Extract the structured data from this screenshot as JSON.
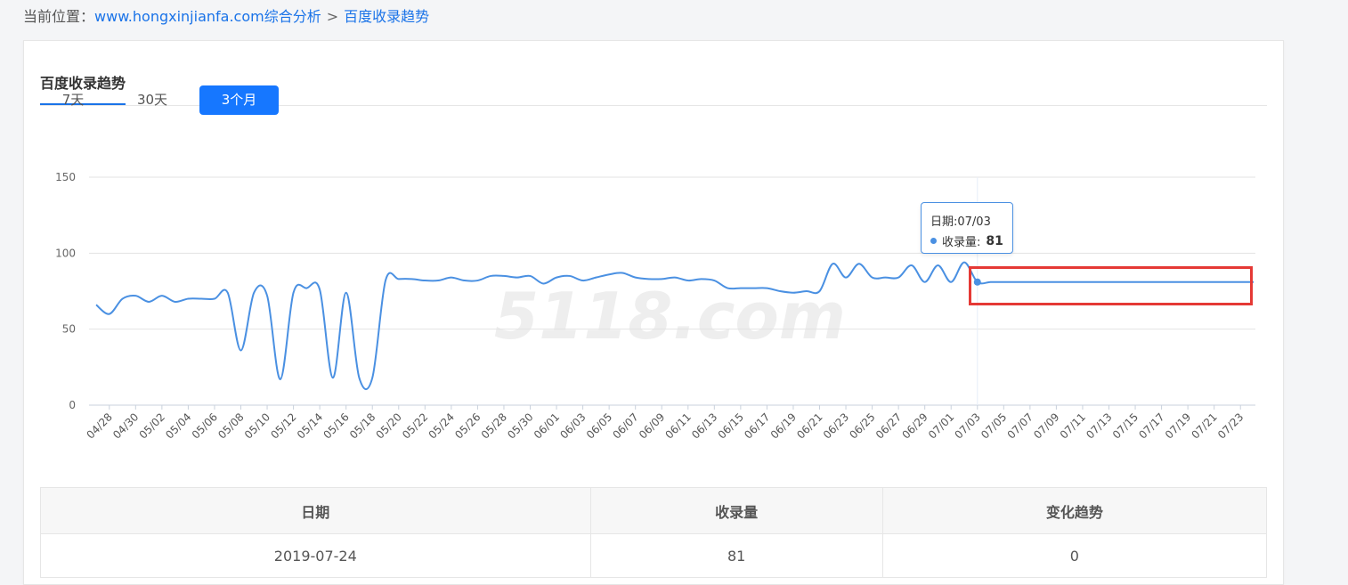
{
  "breadcrumb": {
    "prefix": "当前位置：",
    "site": "www.hongxinjianfa.com综合分析",
    "separator": ">",
    "current": "百度收录趋势"
  },
  "section_title": "百度收录趋势",
  "range_buttons": [
    {
      "label": "7天",
      "active": false
    },
    {
      "label": "30天",
      "active": false
    },
    {
      "label": "3个月",
      "active": true
    }
  ],
  "tooltip": {
    "date_label": "日期:07/03",
    "series_label": "收录量:",
    "value": "81"
  },
  "watermark": "5118.com",
  "chart_data": {
    "type": "line",
    "ylim": [
      0,
      150
    ],
    "yticks": [
      0,
      50,
      100,
      150
    ],
    "x_tick_labels": [
      "04/28",
      "04/30",
      "05/02",
      "05/04",
      "05/06",
      "05/08",
      "05/10",
      "05/12",
      "05/14",
      "05/16",
      "05/18",
      "05/20",
      "05/22",
      "05/24",
      "05/26",
      "05/28",
      "05/30",
      "06/01",
      "06/03",
      "06/05",
      "06/07",
      "06/09",
      "06/11",
      "06/13",
      "06/15",
      "06/17",
      "06/19",
      "06/21",
      "06/23",
      "06/25",
      "06/27",
      "06/29",
      "07/01",
      "07/03",
      "07/05",
      "07/07",
      "07/09",
      "07/11",
      "07/13",
      "07/15",
      "07/17",
      "07/19",
      "07/21",
      "07/23"
    ],
    "series": [
      {
        "color": "#4a90e2",
        "x": [
          "04/27",
          "04/28",
          "04/29",
          "04/30",
          "05/01",
          "05/02",
          "05/03",
          "05/04",
          "05/05",
          "05/06",
          "05/07",
          "05/08",
          "05/09",
          "05/10",
          "05/11",
          "05/12",
          "05/13",
          "05/14",
          "05/15",
          "05/16",
          "05/17",
          "05/18",
          "05/19",
          "05/20",
          "05/21",
          "05/22",
          "05/23",
          "05/24",
          "05/25",
          "05/26",
          "05/27",
          "05/28",
          "05/29",
          "05/30",
          "05/31",
          "06/01",
          "06/02",
          "06/03",
          "06/04",
          "06/05",
          "06/06",
          "06/07",
          "06/08",
          "06/09",
          "06/10",
          "06/11",
          "06/12",
          "06/13",
          "06/14",
          "06/15",
          "06/16",
          "06/17",
          "06/18",
          "06/19",
          "06/20",
          "06/21",
          "06/22",
          "06/23",
          "06/24",
          "06/25",
          "06/26",
          "06/27",
          "06/28",
          "06/29",
          "06/30",
          "07/01",
          "07/02",
          "07/03",
          "07/04",
          "07/05",
          "07/06",
          "07/07",
          "07/08",
          "07/09",
          "07/10",
          "07/11",
          "07/12",
          "07/13",
          "07/14",
          "07/15",
          "07/16",
          "07/17",
          "07/18",
          "07/19",
          "07/20",
          "07/21",
          "07/22",
          "07/23",
          "07/24"
        ],
        "values": [
          66,
          60,
          70,
          72,
          68,
          72,
          68,
          70,
          70,
          70,
          74,
          36,
          74,
          72,
          17,
          74,
          77,
          76,
          18,
          74,
          18,
          18,
          82,
          83,
          83,
          82,
          82,
          84,
          82,
          82,
          85,
          85,
          84,
          85,
          80,
          84,
          85,
          82,
          84,
          86,
          87,
          84,
          83,
          83,
          84,
          82,
          83,
          82,
          77,
          77,
          77,
          77,
          75,
          74,
          75,
          75,
          93,
          84,
          93,
          84,
          84,
          84,
          92,
          81,
          92,
          81,
          94,
          81,
          81,
          81,
          81,
          81,
          81,
          81,
          81,
          81,
          81,
          81,
          81,
          81,
          81,
          81,
          81,
          81,
          81,
          81,
          81,
          81,
          81
        ]
      }
    ]
  },
  "table": {
    "headers": [
      "日期",
      "收录量",
      "变化趋势"
    ],
    "rows": [
      [
        "2019-07-24",
        "81",
        "0"
      ]
    ]
  }
}
